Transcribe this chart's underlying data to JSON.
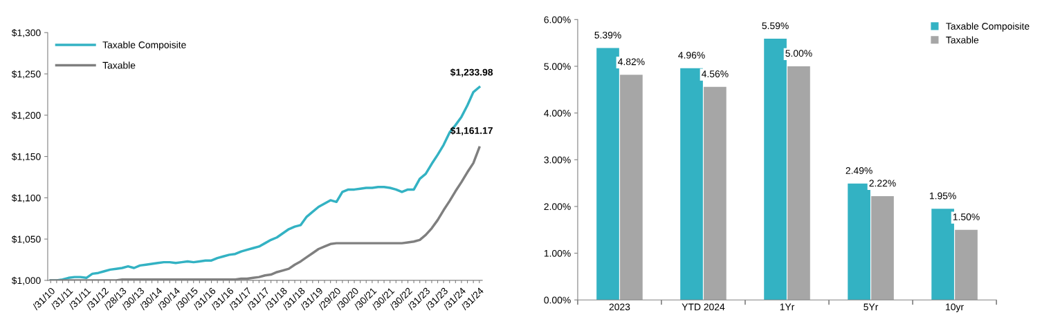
{
  "chart_data": [
    {
      "type": "line",
      "categories": [
        "/31/10",
        null,
        null,
        "/31/11",
        null,
        null,
        "/31/11",
        null,
        null,
        "/31/12",
        null,
        null,
        "/28/13",
        null,
        null,
        "/30/13",
        null,
        null,
        "/30/14",
        null,
        null,
        "/30/14",
        null,
        null,
        "/30/15",
        null,
        null,
        "/31/16",
        null,
        null,
        "/31/16",
        null,
        null,
        "/31/17",
        null,
        null,
        "/31/17",
        null,
        null,
        "/31/18",
        null,
        null,
        "/31/18",
        null,
        null,
        "/31/19",
        null,
        null,
        "/29/20",
        null,
        null,
        "/30/20",
        null,
        null,
        "/30/21",
        null,
        null,
        "/30/21",
        null,
        null,
        "/30/22",
        null,
        null,
        "/31/23",
        null,
        null,
        "/31/23",
        null,
        null,
        "/31/24",
        null,
        null,
        "/31/24"
      ],
      "series": [
        {
          "name": "Taxable Compoisite",
          "color": "#33b2c3",
          "values": [
            1000,
            1000,
            1001,
            1003,
            1004,
            1004,
            1003,
            1008,
            1009,
            1011,
            1013,
            1014,
            1015,
            1017,
            1015,
            1018,
            1019,
            1020,
            1021,
            1022,
            1022,
            1021,
            1022,
            1023,
            1022,
            1023,
            1024,
            1024,
            1027,
            1029,
            1031,
            1032,
            1035,
            1037,
            1039,
            1041,
            1045,
            1049,
            1052,
            1057,
            1062,
            1065,
            1067,
            1077,
            1083,
            1089,
            1093,
            1097,
            1095,
            1107,
            1110,
            1110,
            1111,
            1112,
            1112,
            1113,
            1113,
            1112,
            1110,
            1107,
            1110,
            1110,
            1123,
            1129,
            1141,
            1152,
            1164,
            1179,
            1188,
            1198,
            1212,
            1228,
            1234
          ]
        },
        {
          "name": "Taxable",
          "color": "#7f7f7f",
          "values": [
            1000,
            1000,
            1000,
            1000,
            1000,
            1000,
            1000,
            1000,
            1000,
            1000,
            1000,
            1000,
            1001,
            1001,
            1001,
            1001,
            1001,
            1001,
            1001,
            1001,
            1001,
            1001,
            1001,
            1001,
            1001,
            1001,
            1001,
            1001,
            1001,
            1001,
            1001,
            1001,
            1002,
            1002,
            1003,
            1004,
            1006,
            1007,
            1010,
            1012,
            1014,
            1019,
            1023,
            1028,
            1033,
            1038,
            1041,
            1044,
            1045,
            1045,
            1045,
            1045,
            1045,
            1045,
            1045,
            1045,
            1045,
            1045,
            1045,
            1045,
            1046,
            1047,
            1049,
            1055,
            1063,
            1073,
            1085,
            1096,
            1108,
            1119,
            1131,
            1142,
            1161
          ]
        }
      ],
      "ylim": [
        1000,
        1300
      ],
      "yticks": [
        {
          "value": 1000,
          "label": "$1,000"
        },
        {
          "value": 1050,
          "label": "$1,050"
        },
        {
          "value": 1100,
          "label": "$1,100"
        },
        {
          "value": 1150,
          "label": "$1,150"
        },
        {
          "value": 1200,
          "label": "$1,200"
        },
        {
          "value": 1250,
          "label": "$1,250"
        },
        {
          "value": 1300,
          "label": "$1,300"
        }
      ],
      "legend": "top left",
      "annotations": [
        "$1,233.98",
        "$1,161.17"
      ]
    },
    {
      "type": "bar",
      "categories": [
        "2023",
        "YTD 2024",
        "1Yr",
        "5Yr",
        "10yr"
      ],
      "series": [
        {
          "name": "Taxable Compoisite",
          "color": "#33b2c3",
          "values": [
            5.39,
            4.96,
            5.59,
            2.49,
            1.95
          ],
          "value_labels": [
            "5.39%",
            "4.96%",
            "5.59%",
            "2.49%",
            "1.95%"
          ]
        },
        {
          "name": "Taxable",
          "color": "#a6a6a6",
          "values": [
            4.82,
            4.56,
            5.0,
            2.22,
            1.5
          ],
          "value_labels": [
            "4.82%",
            "4.56%",
            "5.00%",
            "2.22%",
            "1.50%"
          ]
        }
      ],
      "ylim": [
        0,
        6
      ],
      "yticks": [
        {
          "value": 0,
          "label": "0.00%"
        },
        {
          "value": 1,
          "label": "1.00%"
        },
        {
          "value": 2,
          "label": "2.00%"
        },
        {
          "value": 3,
          "label": "3.00%"
        },
        {
          "value": 4,
          "label": "4.00%"
        },
        {
          "value": 5,
          "label": "5.00%"
        },
        {
          "value": 6,
          "label": "6.00%"
        }
      ],
      "legend": "top right"
    }
  ]
}
